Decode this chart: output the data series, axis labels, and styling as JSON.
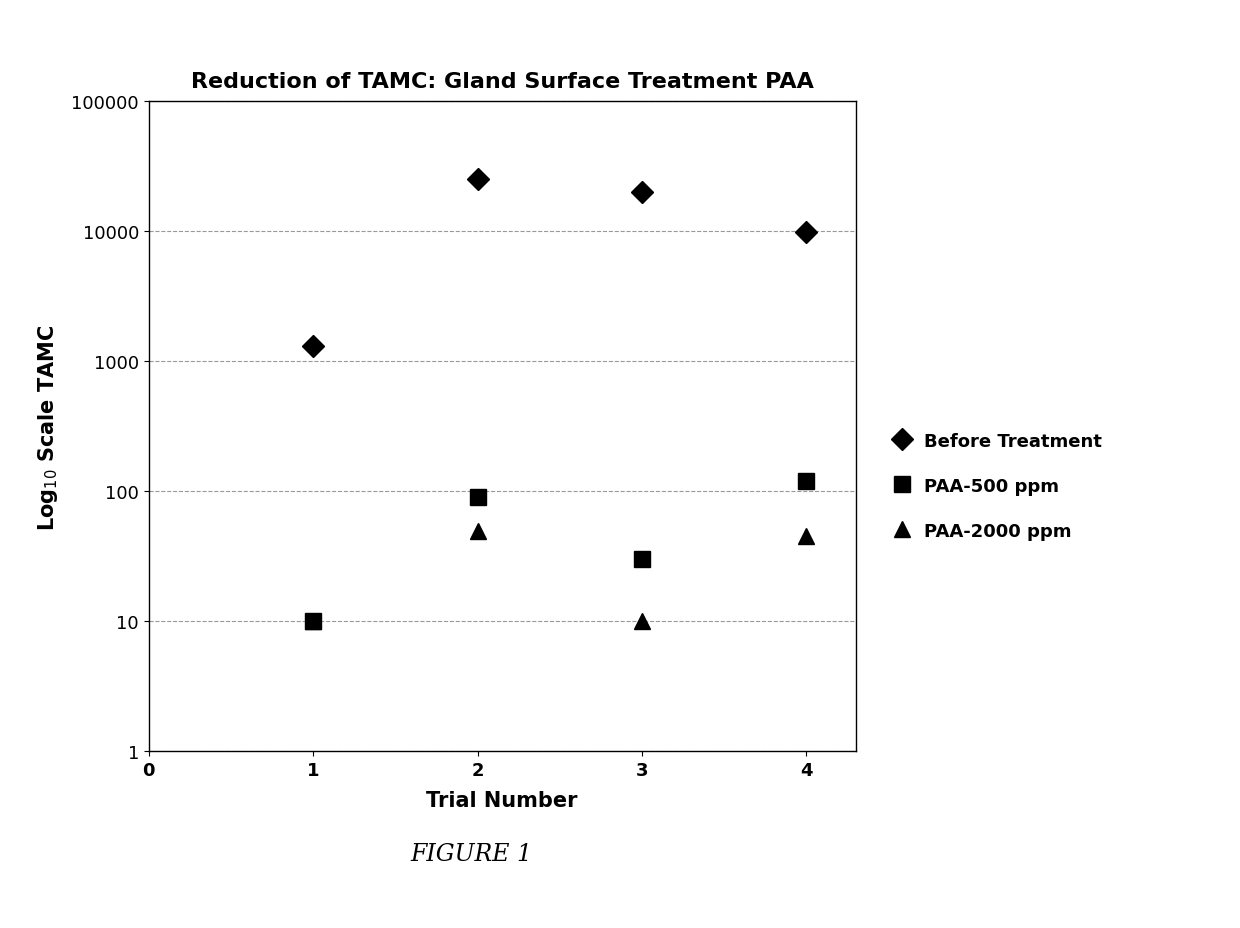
{
  "title": "Reduction of TAMC: Gland Surface Treatment PAA",
  "xlabel": "Trial Number",
  "figure_caption": "FIGURE 1",
  "before_treatment": {
    "x": [
      1,
      2,
      3,
      4
    ],
    "y": [
      1300,
      25000,
      20000,
      9800
    ],
    "label": "Before Treatment",
    "marker": "D",
    "color": "#000000",
    "markersize": 11
  },
  "paa_500": {
    "x": [
      1,
      2,
      3,
      4
    ],
    "y": [
      10,
      90,
      30,
      120
    ],
    "label": "PAA-500 ppm",
    "marker": "s",
    "color": "#000000",
    "markersize": 11
  },
  "paa_2000": {
    "x": [
      1,
      2,
      3,
      4
    ],
    "y": [
      10,
      50,
      10,
      45
    ],
    "label": "PAA-2000 ppm",
    "marker": "^",
    "color": "#000000",
    "markersize": 11
  },
  "ylim": [
    1,
    100000
  ],
  "xlim": [
    0,
    4.3
  ],
  "xticks": [
    0,
    1,
    2,
    3,
    4
  ],
  "background_color": "#ffffff",
  "grid_color": "#999999",
  "title_fontsize": 16,
  "axis_label_fontsize": 15,
  "tick_fontsize": 13,
  "legend_fontsize": 13,
  "caption_fontsize": 17
}
